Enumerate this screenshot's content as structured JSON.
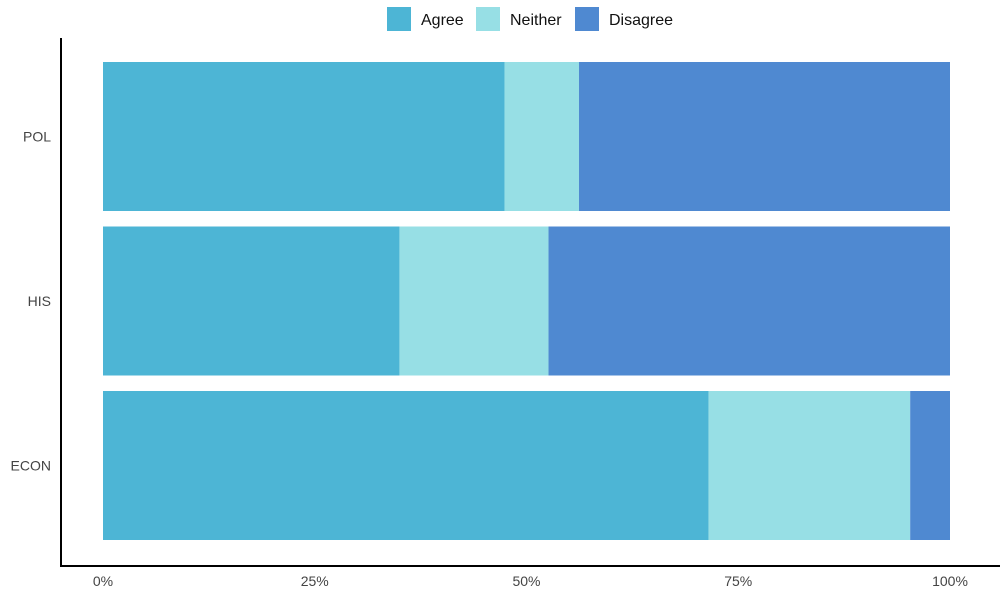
{
  "chart_data": {
    "type": "bar",
    "orientation": "horizontal",
    "stacked": "percent",
    "categories": [
      "POL",
      "HIS",
      "ECON"
    ],
    "series": [
      {
        "name": "Agree",
        "color": "#4db5d5",
        "values": [
          47.4,
          35.0,
          71.5
        ]
      },
      {
        "name": "Neither",
        "color": "#97dfe5",
        "values": [
          8.8,
          17.6,
          23.8
        ]
      },
      {
        "name": "Disagree",
        "color": "#4f89d1",
        "values": [
          43.8,
          47.4,
          4.7
        ]
      }
    ],
    "x_ticks": [
      "0%",
      "25%",
      "50%",
      "75%",
      "100%"
    ],
    "xlim": [
      0,
      100
    ],
    "title": "",
    "xlabel": "",
    "ylabel": "",
    "legend_position": "top-center",
    "grid": false
  }
}
